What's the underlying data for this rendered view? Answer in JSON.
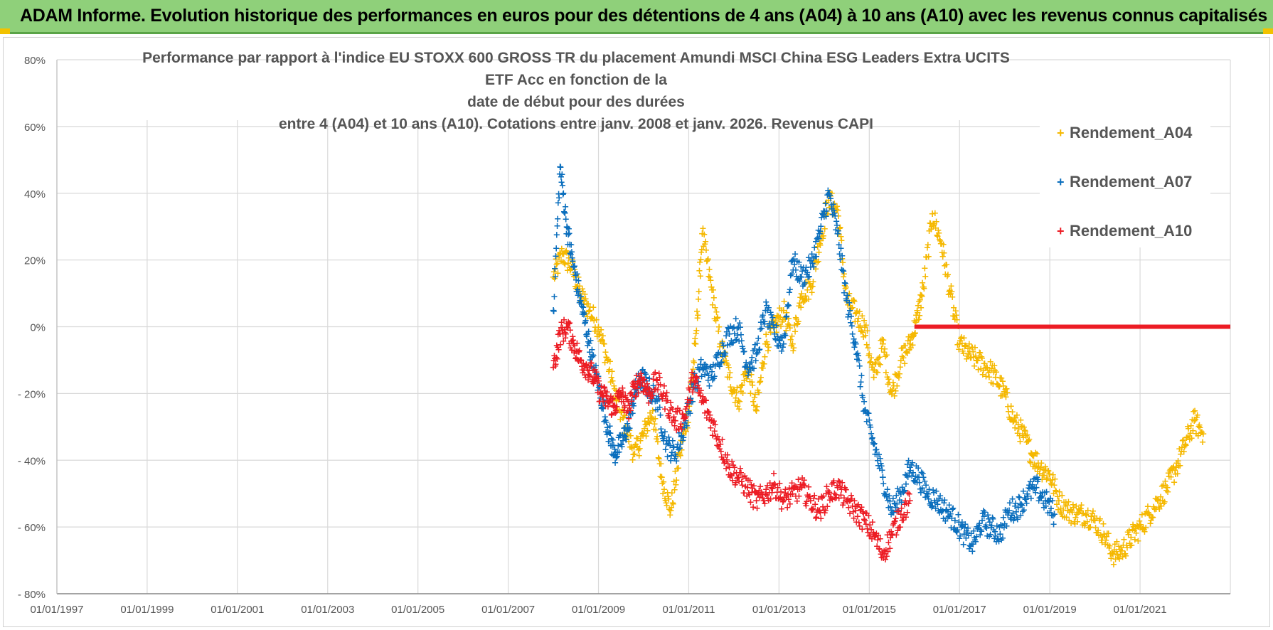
{
  "header": {
    "title": "ADAM Informe. Evolution historique des performances en euros pour des détentions de 4 ans (A04) à 10 ans (A10) avec les revenus connus capitalisés"
  },
  "colors": {
    "banner": "#8fd07a",
    "grid": "#d9d9d9",
    "A04": "#f5b800",
    "A07": "#0a6ebd",
    "A10": "#ec1c24"
  },
  "chart_data": {
    "type": "scatter",
    "title_lines": [
      "Performance par rapport à l'indice EU STOXX 600 GROSS TR  du placement Amundi MSCI China ESG Leaders Extra UCITS ETF Acc en fonction de la",
      "date de début pour des durées",
      "entre 4 (A04) et 10 ans (A10).  Cotations entre janv. 2008 et janv. 2026. Revenus CAPI"
    ],
    "xlabel": "",
    "ylabel": "",
    "xlim": [
      1997.0,
      2023.0
    ],
    "ylim": [
      -80,
      80
    ],
    "y_ticks": [
      80,
      60,
      40,
      20,
      0,
      -20,
      -40,
      -60,
      -80
    ],
    "y_tick_labels": [
      "80%",
      "60%",
      "40%",
      "20%",
      "0%",
      "- 20%",
      "- 40%",
      "- 60%",
      "- 80%"
    ],
    "x_ticks": [
      1997,
      1999,
      2001,
      2003,
      2005,
      2007,
      2009,
      2011,
      2013,
      2015,
      2017,
      2019,
      2021
    ],
    "x_tick_labels": [
      "01/01/1997",
      "01/01/1999",
      "01/01/2001",
      "01/01/2003",
      "01/01/2005",
      "01/01/2007",
      "01/01/2009",
      "01/01/2011",
      "01/01/2013",
      "01/01/2015",
      "01/01/2017",
      "01/01/2019",
      "01/01/2021"
    ],
    "grid": true,
    "legend_position": "top-right",
    "series": [
      {
        "name": "Rendement_A04",
        "x": [
          2008.0,
          2008.2,
          2008.4,
          2008.6,
          2008.8,
          2009.0,
          2009.2,
          2009.4,
          2009.6,
          2009.8,
          2010.0,
          2010.2,
          2010.4,
          2010.6,
          2010.8,
          2011.0,
          2011.15,
          2011.3,
          2011.5,
          2011.7,
          2011.9,
          2012.1,
          2012.3,
          2012.5,
          2012.7,
          2012.9,
          2013.1,
          2013.3,
          2013.5,
          2013.7,
          2013.9,
          2014.1,
          2014.3,
          2014.5,
          2014.7,
          2014.9,
          2015.1,
          2015.3,
          2015.5,
          2015.7,
          2015.9,
          2016.05,
          2016.2,
          2016.4,
          2016.6,
          2016.8,
          2017.0,
          2017.2,
          2017.4,
          2017.6,
          2017.8,
          2018.0,
          2018.2,
          2018.4,
          2018.6,
          2018.8,
          2019.0,
          2019.2,
          2019.4,
          2019.6,
          2019.8,
          2020.0,
          2020.2,
          2020.4,
          2020.6,
          2020.8,
          2021.0,
          2021.2,
          2021.4,
          2021.6,
          2021.8,
          2022.0,
          2022.2,
          2022.4
        ],
        "y": [
          15,
          22,
          18,
          10,
          5,
          0,
          -10,
          -22,
          -30,
          -38,
          -32,
          -25,
          -45,
          -55,
          -38,
          -25,
          -5,
          28,
          12,
          -5,
          -15,
          -22,
          -12,
          -25,
          -5,
          0,
          5,
          -5,
          10,
          12,
          25,
          38,
          35,
          8,
          4,
          0,
          -15,
          -5,
          -20,
          -10,
          -5,
          2,
          12,
          34,
          25,
          10,
          -5,
          -8,
          -10,
          -12,
          -15,
          -20,
          -28,
          -32,
          -38,
          -42,
          -44,
          -52,
          -55,
          -56,
          -56,
          -58,
          -62,
          -68,
          -67,
          -63,
          -60,
          -56,
          -52,
          -48,
          -42,
          -35,
          -28,
          -32
        ]
      },
      {
        "name": "Rendement_A07",
        "x": [
          2008.0,
          2008.15,
          2008.3,
          2008.45,
          2008.6,
          2008.75,
          2008.9,
          2009.05,
          2009.2,
          2009.35,
          2009.5,
          2009.65,
          2009.8,
          2009.95,
          2010.1,
          2010.3,
          2010.5,
          2010.7,
          2010.9,
          2011.1,
          2011.3,
          2011.5,
          2011.7,
          2011.9,
          2012.1,
          2012.3,
          2012.5,
          2012.7,
          2012.9,
          2013.1,
          2013.3,
          2013.5,
          2013.7,
          2013.9,
          2014.1,
          2014.3,
          2014.5,
          2014.7,
          2014.9,
          2015.1,
          2015.3,
          2015.5,
          2015.7,
          2015.9,
          2016.1,
          2016.3,
          2016.5,
          2016.7,
          2016.9,
          2017.1,
          2017.3,
          2017.5,
          2017.7,
          2017.9,
          2018.1,
          2018.3,
          2018.5,
          2018.7,
          2018.9,
          2019.1
        ],
        "y": [
          5,
          48,
          30,
          18,
          8,
          -2,
          -12,
          -20,
          -30,
          -38,
          -35,
          -30,
          -20,
          -15,
          -18,
          -22,
          -35,
          -38,
          -30,
          -18,
          -12,
          -15,
          -8,
          -2,
          0,
          -12,
          -8,
          5,
          -2,
          -5,
          20,
          15,
          18,
          28,
          40,
          28,
          8,
          -5,
          -25,
          -35,
          -45,
          -55,
          -50,
          -42,
          -45,
          -50,
          -52,
          -55,
          -58,
          -62,
          -65,
          -58,
          -60,
          -62,
          -55,
          -54,
          -50,
          -48,
          -52,
          -56
        ]
      },
      {
        "name": "Rendement_A10",
        "x": [
          2008.0,
          2008.15,
          2008.3,
          2008.45,
          2008.6,
          2008.75,
          2008.9,
          2009.05,
          2009.2,
          2009.35,
          2009.5,
          2009.65,
          2009.8,
          2009.95,
          2010.1,
          2010.3,
          2010.5,
          2010.7,
          2010.9,
          2011.1,
          2011.3,
          2011.5,
          2011.7,
          2011.9,
          2012.1,
          2012.3,
          2012.5,
          2012.7,
          2012.9,
          2013.1,
          2013.3,
          2013.5,
          2013.7,
          2013.9,
          2014.1,
          2014.3,
          2014.5,
          2014.7,
          2014.9,
          2015.1,
          2015.3,
          2015.5,
          2015.7,
          2015.9
        ],
        "y": [
          -12,
          -2,
          0,
          -5,
          -10,
          -12,
          -15,
          -20,
          -22,
          -24,
          -20,
          -25,
          -18,
          -15,
          -20,
          -16,
          -22,
          -28,
          -27,
          -15,
          -22,
          -28,
          -35,
          -42,
          -45,
          -48,
          -52,
          -50,
          -47,
          -52,
          -50,
          -48,
          -52,
          -55,
          -50,
          -48,
          -52,
          -55,
          -58,
          -62,
          -68,
          -62,
          -56,
          -52
        ],
        "flat_from": 2016.0,
        "flat_to": 2023.0,
        "flat_value": 0
      }
    ]
  }
}
